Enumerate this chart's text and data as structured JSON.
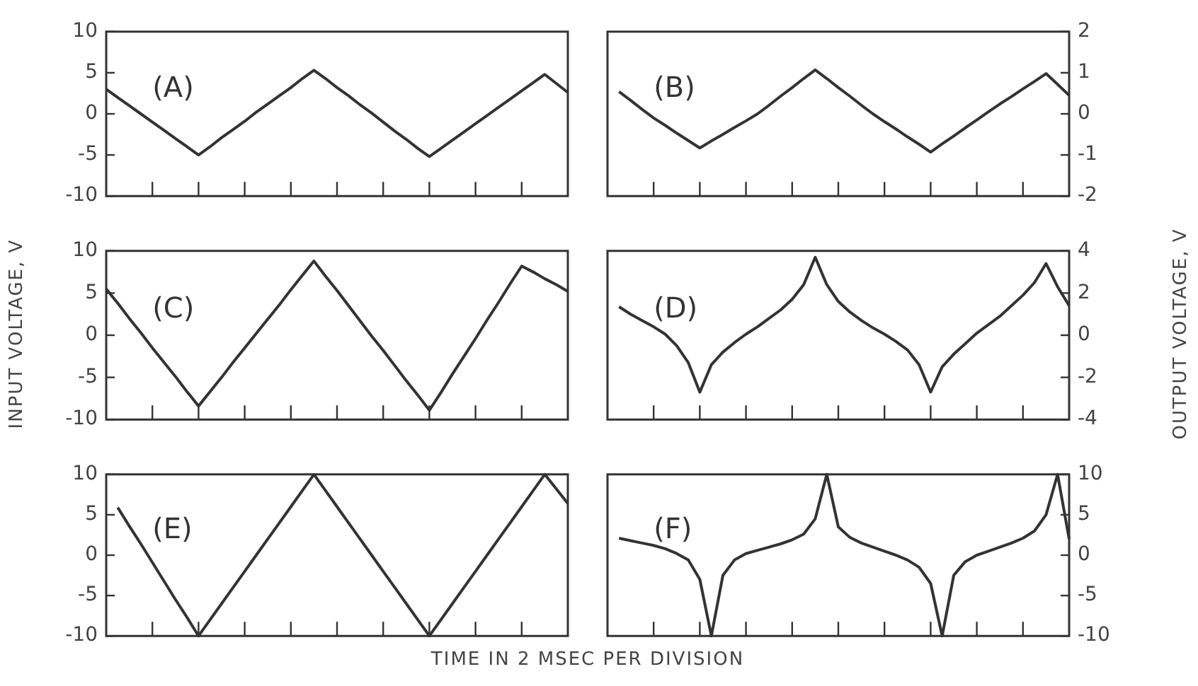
{
  "chart_data": [
    {
      "type": "line",
      "annotations": [
        "(A)"
      ],
      "categories": [
        null,
        null,
        null,
        null,
        null,
        null,
        null,
        null,
        null,
        null,
        null,
        null,
        null,
        null,
        null,
        null,
        null,
        null,
        null,
        null,
        null,
        null,
        null,
        null,
        null,
        null,
        null,
        null,
        null,
        null,
        null,
        null,
        null,
        null,
        null,
        null,
        null,
        null,
        null,
        null,
        null
      ],
      "series": [
        {
          "color": "#333333",
          "values": [
            3,
            2,
            1,
            0,
            -1,
            -2,
            -3,
            -4,
            -5,
            -4,
            -2.9,
            -1.9,
            -0.9,
            0.2,
            1.2,
            2.2,
            3.2,
            4.3,
            5.3,
            4.3,
            3.2,
            2.2,
            1.1,
            0.1,
            -1,
            -2.1,
            -3.1,
            -4.2,
            -5.2,
            -4.2,
            -3.2,
            -2.2,
            -1.2,
            -0.2,
            0.8,
            1.8,
            2.8,
            3.8,
            4.8,
            3.7,
            2.6
          ]
        }
      ],
      "ylim": [
        -10,
        10
      ],
      "yticks": [
        -10,
        -5,
        0,
        5,
        10
      ],
      "tick_labels": "y"
    },
    {
      "type": "line",
      "annotations": [
        "(B)"
      ],
      "categories": [
        null,
        null,
        null,
        null,
        null,
        null,
        null,
        null,
        null,
        null,
        null,
        null,
        null,
        null,
        null,
        null,
        null,
        null,
        null,
        null,
        null,
        null,
        null,
        null,
        null,
        null,
        null,
        null,
        null,
        null,
        null,
        null,
        null,
        null,
        null,
        null,
        null,
        null,
        null,
        null,
        null
      ],
      "series": [
        {
          "color": "#333333",
          "values": [
            null,
            0.54,
            0.33,
            0.11,
            -0.1,
            -0.28,
            -0.47,
            -0.65,
            -0.83,
            -0.66,
            -0.5,
            -0.33,
            -0.17,
            0,
            0.21,
            0.43,
            0.64,
            0.86,
            1.07,
            0.86,
            0.64,
            0.43,
            0.21,
            0,
            -0.19,
            -0.37,
            -0.56,
            -0.74,
            -0.93,
            -0.73,
            -0.54,
            -0.34,
            -0.15,
            0.05,
            0.24,
            0.42,
            0.61,
            0.79,
            0.98,
            0.72,
            0.45
          ]
        }
      ],
      "ylim": [
        -2,
        2
      ],
      "yticks": [
        -2,
        -1,
        0,
        1,
        2
      ],
      "tick_labels": "y"
    },
    {
      "type": "line",
      "annotations": [
        "(C)"
      ],
      "ylabel": "INPUT VOLTAGE, V",
      "categories": [
        null,
        null,
        null,
        null,
        null,
        null,
        null,
        null,
        null,
        null,
        null,
        null,
        null,
        null,
        null,
        null,
        null,
        null,
        null,
        null,
        null,
        null,
        null,
        null,
        null,
        null,
        null,
        null,
        null,
        null,
        null,
        null,
        null,
        null,
        null,
        null,
        null,
        null,
        null,
        null,
        null
      ],
      "series": [
        {
          "color": "#333333",
          "values": [
            5.5,
            3.8,
            2.0,
            0.3,
            -1.5,
            -3.2,
            -4.9,
            -6.7,
            -8.4,
            -6.7,
            -5.0,
            -3.2,
            -1.5,
            0.2,
            1.9,
            3.6,
            5.4,
            7.1,
            8.8,
            7.0,
            5.3,
            3.5,
            1.7,
            -0.1,
            -1.8,
            -3.6,
            -5.4,
            -7.1,
            -8.9,
            -6.8,
            -4.6,
            -2.5,
            -0.4,
            1.8,
            3.9,
            6.1,
            8.2,
            7.5,
            6.7,
            6.0,
            5.2
          ]
        }
      ],
      "ylim": [
        -10,
        10
      ],
      "yticks": [
        -10,
        -5,
        0,
        5,
        10
      ],
      "tick_labels": "y"
    },
    {
      "type": "line",
      "annotations": [
        "(D)"
      ],
      "y2label": "OUTPUT VOLTAGE, V",
      "categories": [
        null,
        null,
        null,
        null,
        null,
        null,
        null,
        null,
        null,
        null,
        null,
        null,
        null,
        null,
        null,
        null,
        null,
        null,
        null,
        null,
        null,
        null,
        null,
        null,
        null,
        null,
        null,
        null,
        null,
        null,
        null,
        null,
        null,
        null,
        null,
        null,
        null,
        null,
        null,
        null,
        null
      ],
      "series": [
        {
          "color": "#333333",
          "values": [
            null,
            1.35,
            1.0,
            0.7,
            0.4,
            0.05,
            -0.5,
            -1.3,
            -2.7,
            -1.4,
            -0.8,
            -0.35,
            0.05,
            0.4,
            0.8,
            1.2,
            1.7,
            2.4,
            3.7,
            2.4,
            1.6,
            1.1,
            0.7,
            0.35,
            0.05,
            -0.3,
            -0.7,
            -1.4,
            -2.7,
            -1.5,
            -0.9,
            -0.4,
            0.1,
            0.5,
            0.9,
            1.4,
            1.9,
            2.5,
            3.4,
            2.3,
            1.4
          ]
        }
      ],
      "ylim": [
        -4,
        4
      ],
      "yticks": [
        -4,
        -2,
        0,
        2,
        4
      ],
      "tick_labels": "y"
    },
    {
      "type": "line",
      "annotations": [
        "(E)"
      ],
      "xlabel": "TIME IN 2 MSEC PER DIVISION",
      "categories": [
        null,
        null,
        null,
        null,
        null,
        null,
        null,
        null,
        null,
        null,
        null,
        null,
        null,
        null,
        null,
        null,
        null,
        null,
        null,
        null,
        null,
        null,
        null,
        null,
        null,
        null,
        null,
        null,
        null,
        null,
        null,
        null,
        null,
        null,
        null,
        null,
        null,
        null,
        null,
        null,
        null
      ],
      "series": [
        {
          "color": "#333333",
          "values": [
            null,
            5.9,
            3.6,
            1.4,
            -0.9,
            -3.2,
            -5.5,
            -7.7,
            -10,
            -8,
            -6,
            -4,
            -2,
            0,
            2,
            4,
            6,
            8,
            10,
            8,
            6,
            4,
            2,
            0,
            -2,
            -4,
            -6,
            -8,
            -10,
            -8,
            -6,
            -4,
            -2,
            0,
            2,
            4,
            6,
            8,
            10,
            8.2,
            6.4
          ]
        }
      ],
      "ylim": [
        -10,
        10
      ],
      "yticks": [
        -10,
        -5,
        0,
        5,
        10
      ],
      "tick_labels": "y"
    },
    {
      "type": "line",
      "annotations": [
        "(F)"
      ],
      "categories": [
        null,
        null,
        null,
        null,
        null,
        null,
        null,
        null,
        null,
        null,
        null,
        null,
        null,
        null,
        null,
        null,
        null,
        null,
        null,
        null,
        null,
        null,
        null,
        null,
        null,
        null,
        null,
        null,
        null,
        null,
        null,
        null,
        null,
        null,
        null,
        null,
        null,
        null,
        null,
        null,
        null
      ],
      "series": [
        {
          "color": "#333333",
          "values": [
            null,
            2.1,
            1.8,
            1.5,
            1.2,
            0.8,
            0.2,
            -0.6,
            -3,
            -10,
            -2.5,
            -0.6,
            0.2,
            0.6,
            1.0,
            1.4,
            1.9,
            2.6,
            4.5,
            10,
            3.5,
            2.2,
            1.5,
            1.0,
            0.5,
            0,
            -0.6,
            -1.5,
            -3.5,
            -10,
            -2.5,
            -0.8,
            0,
            0.5,
            1.0,
            1.5,
            2.1,
            3.0,
            5,
            10,
            2
          ]
        }
      ],
      "ylim": [
        -10,
        10
      ],
      "yticks": [
        -10,
        -5,
        0,
        5,
        10
      ],
      "tick_labels": "y"
    }
  ]
}
